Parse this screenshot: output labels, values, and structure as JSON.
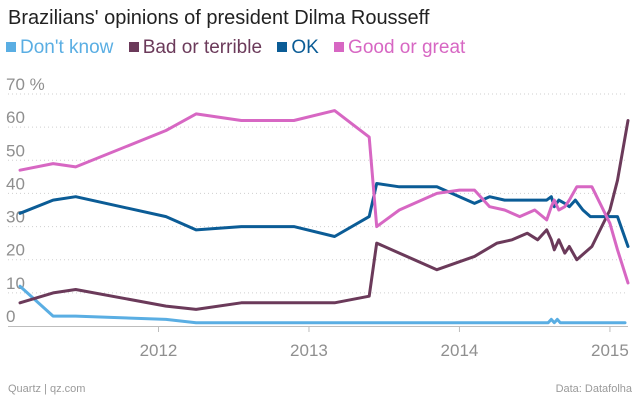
{
  "chart_data": {
    "type": "line",
    "title": "Brazilians' opinions of president Dilma Rousseff",
    "xlabel": "",
    "ylabel": "",
    "ylim": [
      0,
      70
    ],
    "xlim": [
      2011.0,
      2015.12
    ],
    "y_ticks": [
      0,
      10,
      20,
      30,
      40,
      50,
      60,
      70
    ],
    "y_tick_labels": [
      "0",
      "10",
      "20",
      "30",
      "40",
      "50",
      "60",
      "70 %"
    ],
    "x_ticks": [
      2012,
      2013,
      2014,
      2015
    ],
    "x_tick_labels": [
      "2012",
      "2013",
      "2014",
      "2015"
    ],
    "series": [
      {
        "name": "Don't know",
        "color": "#5aaee3",
        "x": [
          2011.08,
          2011.3,
          2011.45,
          2012.05,
          2012.25,
          2012.55,
          2012.9,
          2013.2,
          2013.4,
          2013.6,
          2014.0,
          2014.3,
          2014.59,
          2014.61,
          2014.63,
          2014.65,
          2014.67,
          2014.69,
          2014.72,
          2014.9,
          2015.1
        ],
        "y": [
          12,
          3,
          3,
          2,
          1,
          1,
          1,
          1,
          1,
          1,
          1,
          1,
          1,
          2,
          1,
          2,
          1,
          1,
          1,
          1,
          1
        ]
      },
      {
        "name": "Bad or terrible",
        "color": "#6b3a5a",
        "x": [
          2011.08,
          2011.3,
          2011.45,
          2012.05,
          2012.25,
          2012.55,
          2012.9,
          2013.17,
          2013.4,
          2013.45,
          2013.6,
          2013.85,
          2014.1,
          2014.25,
          2014.35,
          2014.45,
          2014.52,
          2014.58,
          2014.61,
          2014.63,
          2014.66,
          2014.7,
          2014.73,
          2014.78,
          2014.88,
          2015.0,
          2015.05,
          2015.12
        ],
        "y": [
          7,
          10,
          11,
          6,
          5,
          7,
          7,
          7,
          9,
          25,
          22,
          17,
          21,
          25,
          26,
          28,
          26,
          29,
          26,
          23,
          26,
          22,
          24,
          20,
          24,
          35,
          44,
          62
        ]
      },
      {
        "name": "OK",
        "color": "#0b5c96",
        "x": [
          2011.08,
          2011.3,
          2011.45,
          2012.05,
          2012.25,
          2012.55,
          2012.9,
          2013.17,
          2013.4,
          2013.45,
          2013.6,
          2013.85,
          2014.1,
          2014.2,
          2014.3,
          2014.4,
          2014.5,
          2014.58,
          2014.61,
          2014.63,
          2014.66,
          2014.7,
          2014.73,
          2014.77,
          2014.82,
          2014.87,
          2014.92,
          2015.0,
          2015.05,
          2015.12
        ],
        "y": [
          34,
          38,
          39,
          33,
          29,
          30,
          30,
          27,
          33,
          43,
          42,
          42,
          37,
          39,
          38,
          38,
          38,
          38,
          39,
          36,
          38,
          37,
          36,
          38,
          35,
          33,
          33,
          33,
          33,
          24
        ]
      },
      {
        "name": "Good or great",
        "color": "#d767c3",
        "x": [
          2011.08,
          2011.3,
          2011.45,
          2012.05,
          2012.25,
          2012.55,
          2012.9,
          2013.17,
          2013.4,
          2013.45,
          2013.6,
          2013.85,
          2014.0,
          2014.1,
          2014.2,
          2014.3,
          2014.4,
          2014.5,
          2014.58,
          2014.61,
          2014.63,
          2014.66,
          2014.7,
          2014.73,
          2014.78,
          2014.88,
          2015.0,
          2015.05,
          2015.12
        ],
        "y": [
          47,
          49,
          48,
          59,
          64,
          62,
          62,
          65,
          57,
          30,
          35,
          40,
          41,
          41,
          36,
          35,
          33,
          35,
          32,
          36,
          38,
          35,
          36,
          38,
          42,
          42,
          31,
          23,
          13
        ]
      }
    ]
  },
  "footer": {
    "credit": "Quartz | qz.com",
    "source": "Data: Datafolha"
  }
}
